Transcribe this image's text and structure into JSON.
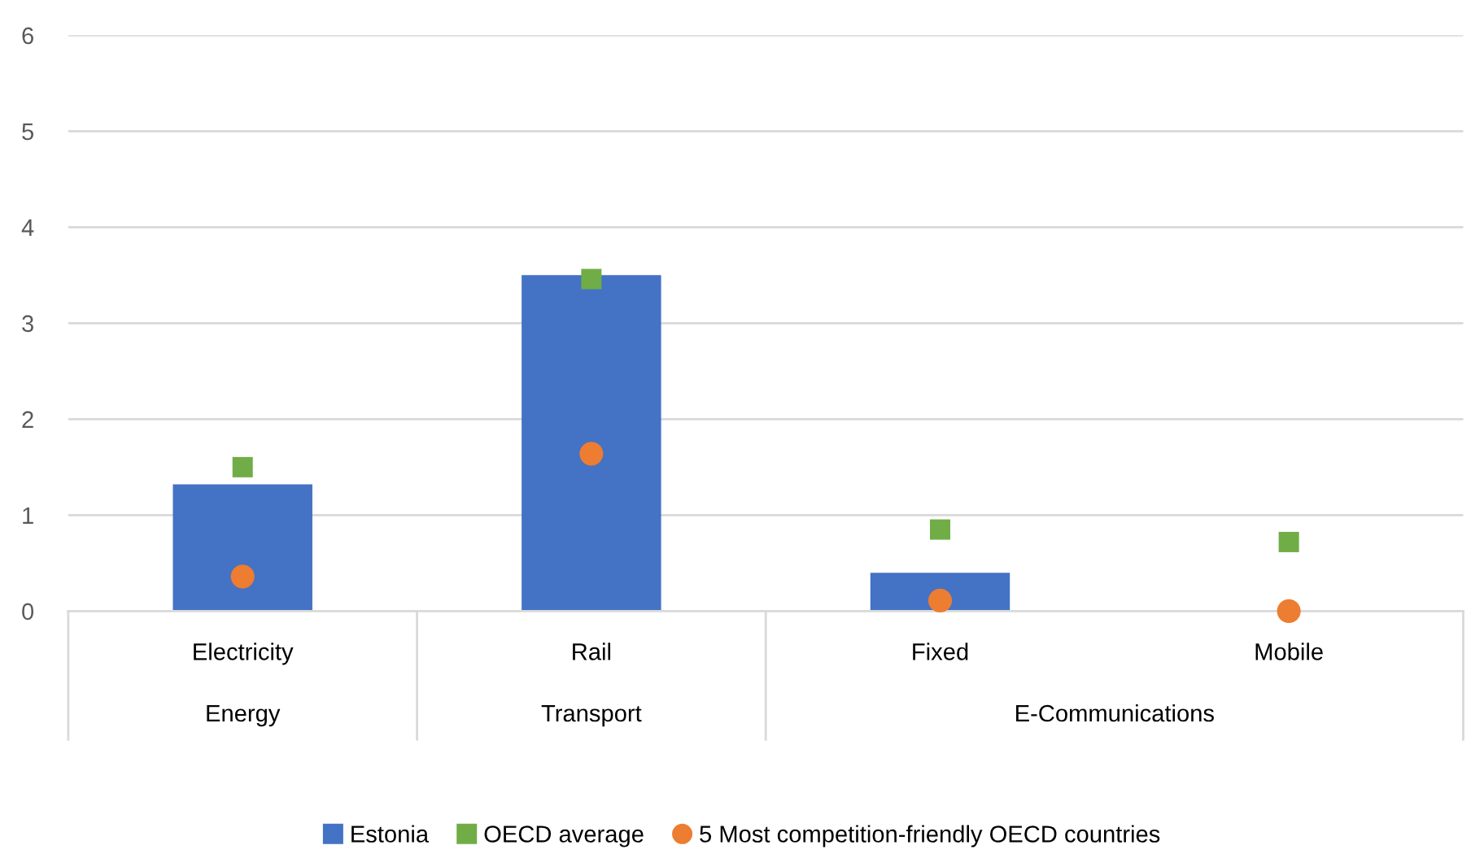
{
  "chart_data": {
    "type": "bar",
    "categories": [
      "Electricity",
      "Rail",
      "Fixed",
      "Mobile"
    ],
    "series": [
      {
        "name": "Estonia",
        "color": "#4472c4",
        "values": [
          1.32,
          3.5,
          0.4,
          0
        ]
      },
      {
        "name": "OECD average",
        "type": "scatter",
        "marker": "square",
        "color": "#70ad47",
        "values": [
          1.5,
          3.46,
          0.85,
          0.72
        ]
      },
      {
        "name": "5 Most competition-friendly OECD countries",
        "type": "scatter",
        "marker": "circle",
        "color": "#ed7d31",
        "values": [
          0.36,
          1.64,
          0.11,
          0
        ]
      }
    ],
    "ylim": [
      0,
      6
    ],
    "yticks": [
      0,
      1,
      2,
      3,
      4,
      5,
      6
    ],
    "grid": "y",
    "legend": "bottom",
    "annotations": [
      "Energy",
      "Transport",
      "E-Communications"
    ]
  }
}
